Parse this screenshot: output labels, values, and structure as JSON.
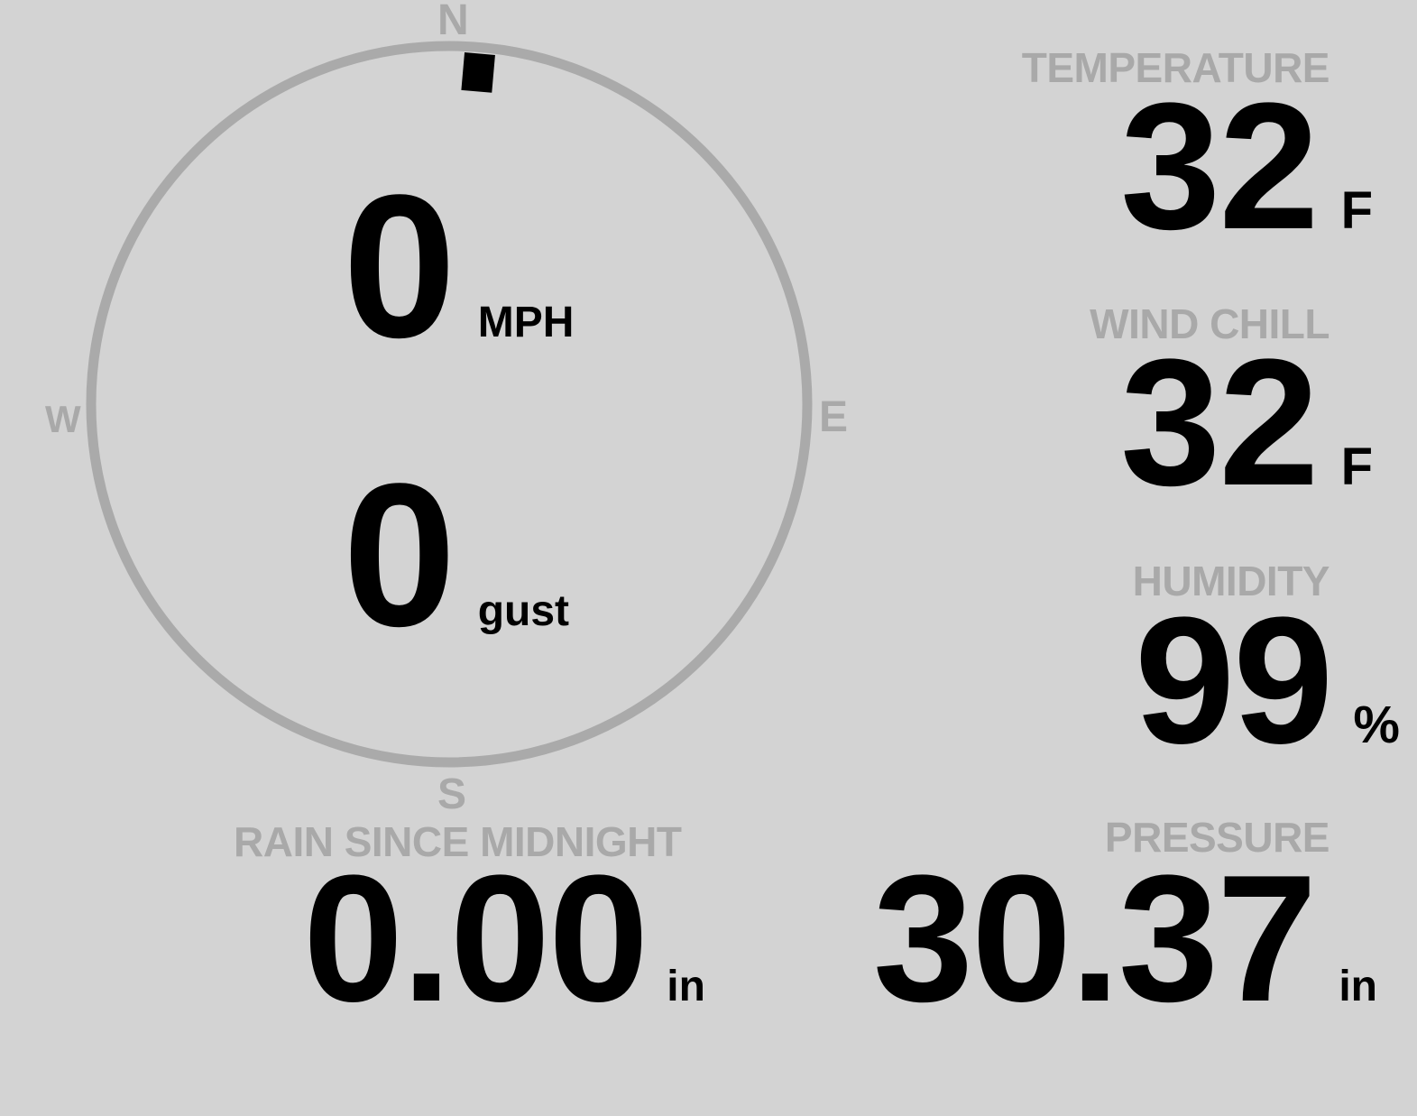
{
  "compass": {
    "north": "N",
    "south": "S",
    "east": "E",
    "west": "W",
    "wind_direction_deg": 5,
    "ring_color": "#aaaaaa",
    "indicator_color": "#000000"
  },
  "wind": {
    "speed": "0",
    "speed_unit": "MPH",
    "gust": "0",
    "gust_unit": "gust"
  },
  "temperature": {
    "label": "TEMPERATURE",
    "value": "32",
    "unit": "F"
  },
  "wind_chill": {
    "label": "WIND CHILL",
    "value": "32",
    "unit": "F"
  },
  "humidity": {
    "label": "HUMIDITY",
    "value": "99",
    "unit": "%"
  },
  "rain": {
    "label": "RAIN SINCE MIDNIGHT",
    "value": "0.00",
    "unit": "in"
  },
  "pressure": {
    "label": "PRESSURE",
    "value": "30.37",
    "unit": "in"
  },
  "colors": {
    "background": "#d3d3d3",
    "label": "#a9a9a9",
    "value": "#000000"
  }
}
